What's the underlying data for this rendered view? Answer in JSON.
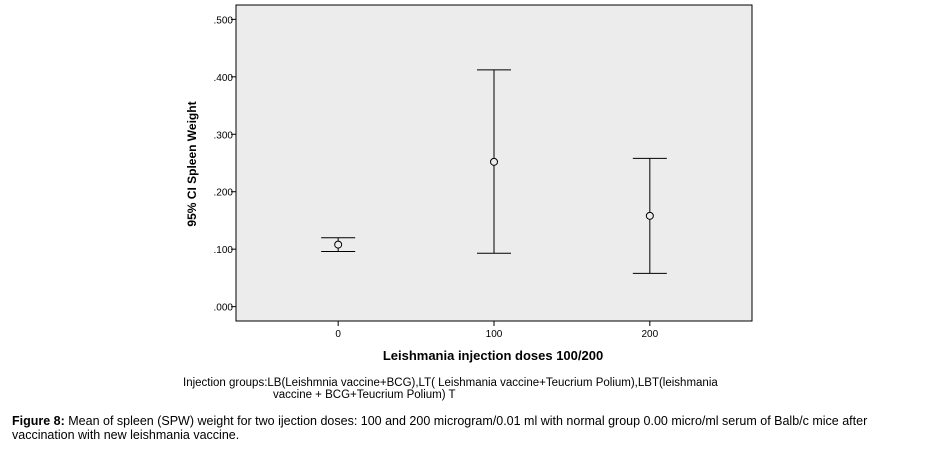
{
  "chart_data": {
    "type": "errorbar",
    "xlabel": "Leishmania injection doses 100/200",
    "ylabel": "95% CI Spleen Weight",
    "categories": [
      "0",
      "100",
      "200"
    ],
    "points": [
      {
        "x": "0",
        "mean": 0.108,
        "lower": 0.096,
        "upper": 0.12
      },
      {
        "x": "100",
        "mean": 0.252,
        "lower": 0.093,
        "upper": 0.412
      },
      {
        "x": "200",
        "mean": 0.158,
        "lower": 0.058,
        "upper": 0.258
      }
    ],
    "ylim": [
      -0.025,
      0.525
    ],
    "yticks": [
      0.0,
      0.1,
      0.2,
      0.3,
      0.4,
      0.5
    ],
    "ytick_labels": [
      ".000",
      ".100",
      ".200",
      ".300",
      ".400",
      ".500"
    ],
    "grid": false,
    "colors": {
      "plot_background": "#ececec",
      "marks": "#000000"
    }
  },
  "footnote": {
    "line1": "Injection groups:LB(Leishmnia vaccine+BCG),LT( Leishmania vaccine+Teucrium Polium),LBT(leishmania",
    "line2": "vaccine + BCG+Teucrium Polium)   T"
  },
  "caption": {
    "label": "Figure 8:",
    "text": " Mean of spleen (SPW) weight for two ijection doses: 100 and 200 microgram/0.01 ml with normal group 0.00 micro/ml serum of Balb/c mice after vaccination with new leishmania vaccine."
  }
}
